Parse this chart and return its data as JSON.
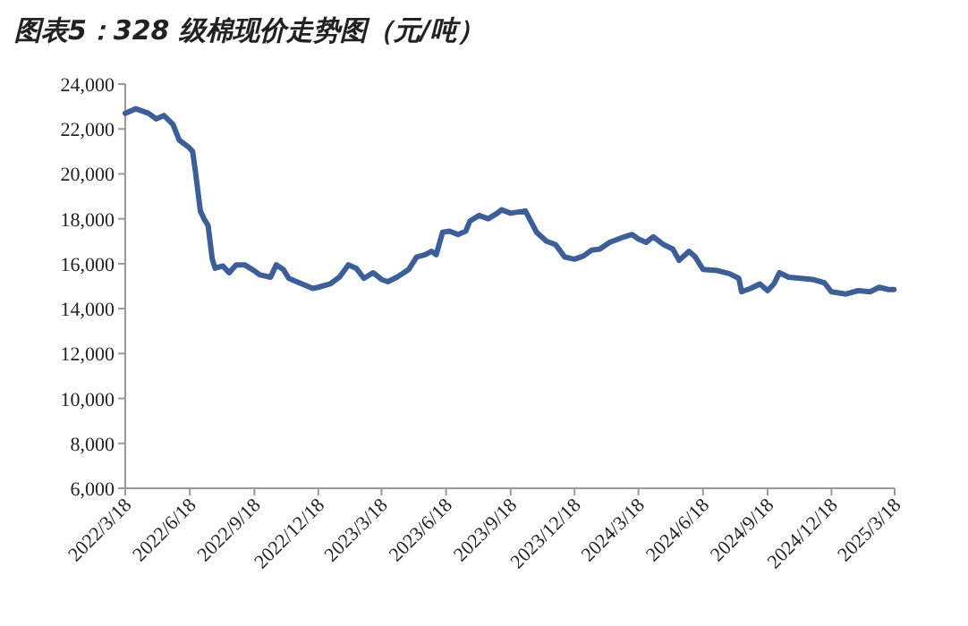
{
  "chart_data": {
    "type": "line",
    "title": "图表5：328 级棉现价走势图（元/吨）",
    "xlim": [
      "2022-03-18",
      "2025-03-18"
    ],
    "xticks": [
      {
        "value": "2022-03-18",
        "label": "2022/3/18"
      },
      {
        "value": "2022-06-18",
        "label": "2022/6/18"
      },
      {
        "value": "2022-09-18",
        "label": "2022/9/18"
      },
      {
        "value": "2022-12-18",
        "label": "2022/12/18"
      },
      {
        "value": "2023-03-18",
        "label": "2023/3/18"
      },
      {
        "value": "2023-06-18",
        "label": "2023/6/18"
      },
      {
        "value": "2023-09-18",
        "label": "2023/9/18"
      },
      {
        "value": "2023-12-18",
        "label": "2023/12/18"
      },
      {
        "value": "2024-03-18",
        "label": "2024/3/18"
      },
      {
        "value": "2024-06-18",
        "label": "2024/6/18"
      },
      {
        "value": "2024-09-18",
        "label": "2024/9/18"
      },
      {
        "value": "2024-12-18",
        "label": "2024/12/18"
      },
      {
        "value": "2025-03-18",
        "label": "2025/3/18"
      }
    ],
    "ylim": [
      6000,
      24000
    ],
    "yticks": [
      {
        "value": 6000,
        "label": "6,000"
      },
      {
        "value": 8000,
        "label": "8,000"
      },
      {
        "value": 10000,
        "label": "10,000"
      },
      {
        "value": 12000,
        "label": "12,000"
      },
      {
        "value": 14000,
        "label": "14,000"
      },
      {
        "value": 16000,
        "label": "16,000"
      },
      {
        "value": 18000,
        "label": "18,000"
      },
      {
        "value": 20000,
        "label": "20,000"
      },
      {
        "value": 22000,
        "label": "22,000"
      },
      {
        "value": 24000,
        "label": "24,000"
      }
    ],
    "grid": false,
    "x": [
      "2022-03-18",
      "2022-04-02",
      "2022-04-20",
      "2022-05-01",
      "2022-05-12",
      "2022-05-25",
      "2022-06-03",
      "2022-06-16",
      "2022-06-22",
      "2022-06-26",
      "2022-07-03",
      "2022-07-09",
      "2022-07-14",
      "2022-07-20",
      "2022-07-24",
      "2022-08-04",
      "2022-08-13",
      "2022-08-23",
      "2022-09-04",
      "2022-09-17",
      "2022-09-26",
      "2022-10-11",
      "2022-10-19",
      "2022-10-29",
      "2022-11-06",
      "2022-11-21",
      "2022-12-10",
      "2022-12-18",
      "2023-01-04",
      "2023-01-17",
      "2023-01-30",
      "2023-02-10",
      "2023-02-21",
      "2023-03-06",
      "2023-03-18",
      "2023-03-27",
      "2023-04-09",
      "2023-04-26",
      "2023-05-07",
      "2023-05-19",
      "2023-05-28",
      "2023-06-04",
      "2023-06-13",
      "2023-06-23",
      "2023-07-05",
      "2023-07-16",
      "2023-07-22",
      "2023-08-04",
      "2023-08-17",
      "2023-08-30",
      "2023-09-05",
      "2023-09-18",
      "2023-10-09",
      "2023-10-25",
      "2023-11-08",
      "2023-11-21",
      "2023-12-04",
      "2023-12-18",
      "2023-12-31",
      "2024-01-11",
      "2024-01-23",
      "2024-02-06",
      "2024-02-27",
      "2024-03-09",
      "2024-03-18",
      "2024-03-29",
      "2024-04-08",
      "2024-04-23",
      "2024-05-06",
      "2024-05-15",
      "2024-05-29",
      "2024-06-07",
      "2024-06-18",
      "2024-07-08",
      "2024-07-26",
      "2024-08-08",
      "2024-08-12",
      "2024-08-25",
      "2024-09-07",
      "2024-09-18",
      "2024-09-27",
      "2024-10-05",
      "2024-10-18",
      "2024-11-04",
      "2024-11-21",
      "2024-12-08",
      "2024-12-18",
      "2025-01-07",
      "2025-01-25",
      "2025-02-11",
      "2025-02-24",
      "2025-03-09",
      "2025-03-17"
    ],
    "series": [
      {
        "color": "#3a5f9a",
        "values": [
          22700,
          22900,
          22700,
          22450,
          22600,
          22200,
          21500,
          21200,
          21000,
          20100,
          18350,
          17950,
          17700,
          16200,
          15800,
          15900,
          15600,
          15950,
          15950,
          15700,
          15500,
          15400,
          15950,
          15750,
          15350,
          15150,
          14900,
          14950,
          15100,
          15400,
          15950,
          15800,
          15350,
          15600,
          15300,
          15200,
          15400,
          15750,
          16300,
          16400,
          16550,
          16400,
          17400,
          17450,
          17300,
          17450,
          17900,
          18150,
          18000,
          18250,
          18400,
          18250,
          18350,
          17400,
          17000,
          16850,
          16300,
          16200,
          16350,
          16600,
          16650,
          16950,
          17200,
          17300,
          17100,
          16950,
          17200,
          16850,
          16650,
          16150,
          16550,
          16300,
          15750,
          15700,
          15550,
          15350,
          14750,
          14900,
          15100,
          14800,
          15100,
          15600,
          15400,
          15350,
          15300,
          15150,
          14750,
          14650,
          14800,
          14750,
          14950,
          14850,
          14850
        ]
      }
    ]
  }
}
